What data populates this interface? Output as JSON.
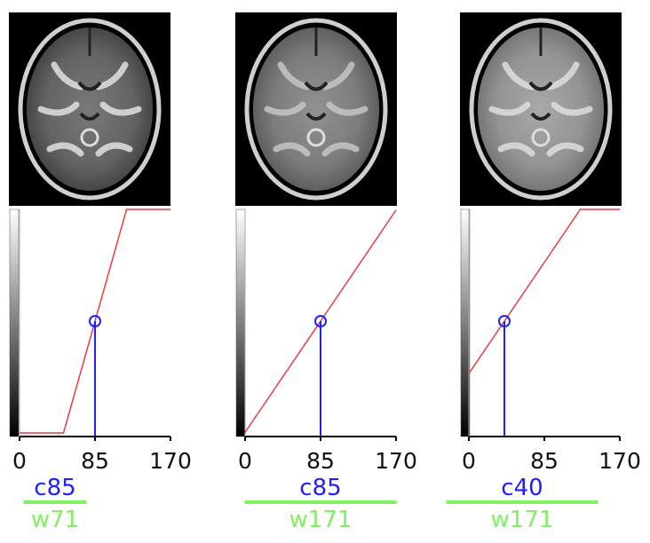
{
  "colors": {
    "curve": "#ee3b3b",
    "center": "#2020ff",
    "width": "#80f060",
    "axis": "#000000",
    "tick_text": "#111111"
  },
  "icons": [
    "brain-mri-axial-image",
    "grayscale-colorbar"
  ],
  "panels": [
    {
      "id": "panel-1",
      "center": 85,
      "width": 71,
      "center_label": "c85",
      "width_label": "w71",
      "ticks": [
        "0",
        "85",
        "170"
      ],
      "xlim": [
        0,
        170
      ]
    },
    {
      "id": "panel-2",
      "center": 85,
      "width": 171,
      "center_label": "c85",
      "width_label": "w171",
      "ticks": [
        "0",
        "85",
        "170"
      ],
      "xlim": [
        0,
        170
      ]
    },
    {
      "id": "panel-3",
      "center": 40,
      "width": 171,
      "center_label": "c40",
      "width_label": "w171",
      "ticks": [
        "0",
        "85",
        "170"
      ],
      "xlim": [
        0,
        170
      ]
    }
  ]
}
